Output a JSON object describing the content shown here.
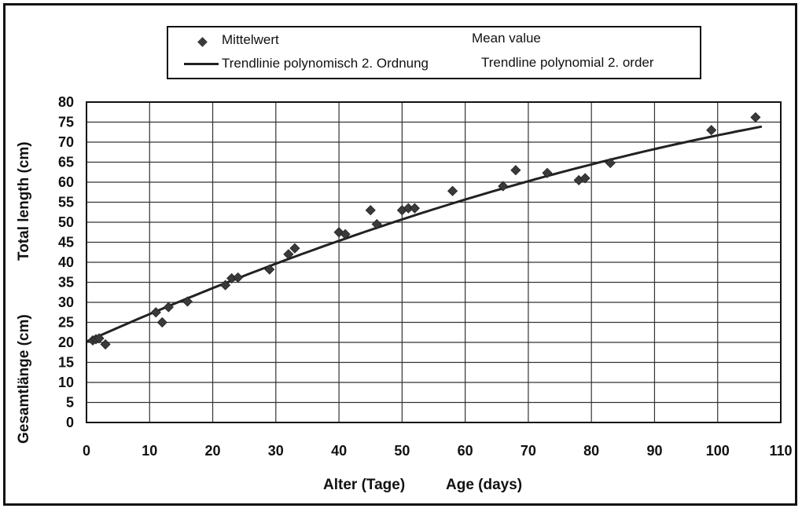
{
  "legend": {
    "mean_de": "Mittelwert",
    "mean_en": "Mean value",
    "trend_de": "Trendlinie polynomisch 2. Ordnung",
    "trend_en": "Trendline polynomial 2. order"
  },
  "axis_titles": {
    "y_de": "Gesamtlänge (cm)",
    "y_en": "Total length (cm)",
    "x_de": "Alter (Tage)",
    "x_en": "Age (days)"
  },
  "chart_data": {
    "type": "scatter",
    "xlim": [
      0,
      110
    ],
    "ylim": [
      0,
      80
    ],
    "xticks": [
      0,
      10,
      20,
      30,
      40,
      50,
      60,
      70,
      80,
      90,
      100,
      110
    ],
    "yticks": [
      0,
      5,
      10,
      15,
      20,
      25,
      30,
      35,
      40,
      45,
      50,
      55,
      60,
      65,
      70,
      75,
      80
    ],
    "grid": true,
    "legend_position": "top",
    "series": [
      {
        "name": "Mittelwert",
        "marker": "diamond",
        "color": "#3a3a3a",
        "points": [
          [
            1,
            20.5
          ],
          [
            1.5,
            20.8
          ],
          [
            2,
            21
          ],
          [
            3,
            19.5
          ],
          [
            11,
            27.5
          ],
          [
            12,
            25
          ],
          [
            13,
            28.8
          ],
          [
            16,
            30.2
          ],
          [
            22,
            34.3
          ],
          [
            23,
            36
          ],
          [
            24,
            36.2
          ],
          [
            29,
            38.2
          ],
          [
            32,
            42
          ],
          [
            33,
            43.5
          ],
          [
            40,
            47.5
          ],
          [
            41,
            47
          ],
          [
            45,
            53
          ],
          [
            46,
            49.5
          ],
          [
            50,
            53
          ],
          [
            51,
            53.5
          ],
          [
            52,
            53.5
          ],
          [
            58,
            57.8
          ],
          [
            66,
            59
          ],
          [
            68,
            63
          ],
          [
            73,
            62.3
          ],
          [
            78,
            60.5
          ],
          [
            79,
            61
          ],
          [
            83,
            64.8
          ],
          [
            99,
            73
          ],
          [
            106,
            76.2
          ]
        ]
      },
      {
        "name": "Trendlinie polynomisch 2. Ordnung",
        "type": "polynomial-trend",
        "color": "#222222",
        "x_range": [
          0,
          107
        ],
        "coefficients": [
          20.2,
          0.705,
          -0.0019
        ]
      }
    ]
  }
}
